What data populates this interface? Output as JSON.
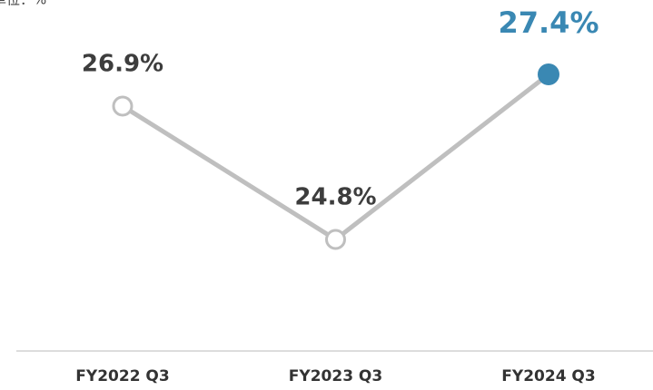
{
  "chart_data": {
    "type": "line",
    "unit_note": "単位：%",
    "categories": [
      "FY2022 Q3",
      "FY2023 Q3",
      "FY2024 Q3"
    ],
    "series": [
      {
        "values": [
          26.9,
          24.8,
          27.4
        ],
        "value_labels": [
          "26.9%",
          "24.8%",
          "27.4%"
        ],
        "color": "#bfbfbf",
        "highlight_color": "#3a88b3"
      }
    ]
  }
}
